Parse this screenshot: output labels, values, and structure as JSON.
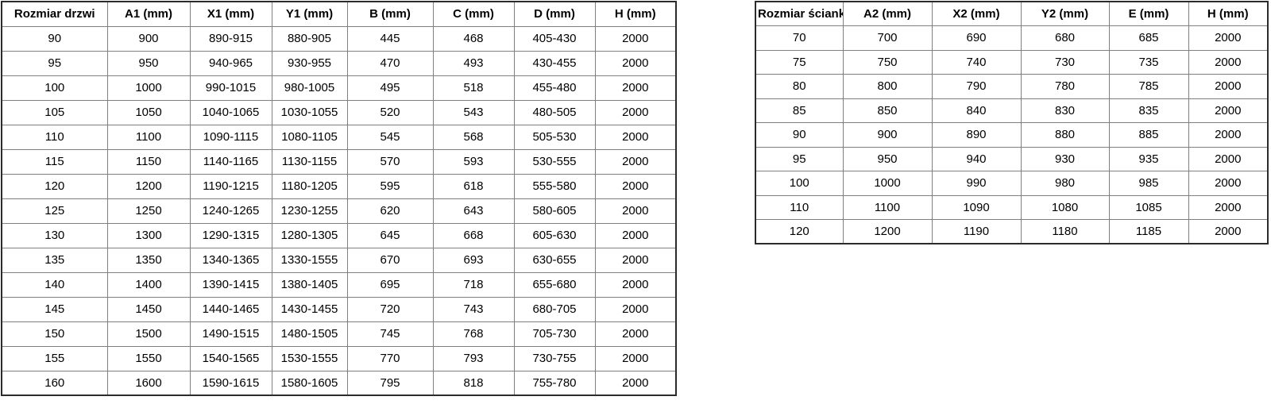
{
  "door_table": {
    "headers": [
      "Rozmiar drzwi",
      "A1 (mm)",
      "X1 (mm)",
      "Y1 (mm)",
      "B (mm)",
      "C (mm)",
      "D (mm)",
      "H (mm)"
    ],
    "rows": [
      [
        "90",
        "900",
        "890-915",
        "880-905",
        "445",
        "468",
        "405-430",
        "2000"
      ],
      [
        "95",
        "950",
        "940-965",
        "930-955",
        "470",
        "493",
        "430-455",
        "2000"
      ],
      [
        "100",
        "1000",
        "990-1015",
        "980-1005",
        "495",
        "518",
        "455-480",
        "2000"
      ],
      [
        "105",
        "1050",
        "1040-1065",
        "1030-1055",
        "520",
        "543",
        "480-505",
        "2000"
      ],
      [
        "110",
        "1100",
        "1090-1115",
        "1080-1105",
        "545",
        "568",
        "505-530",
        "2000"
      ],
      [
        "115",
        "1150",
        "1140-1165",
        "1130-1155",
        "570",
        "593",
        "530-555",
        "2000"
      ],
      [
        "120",
        "1200",
        "1190-1215",
        "1180-1205",
        "595",
        "618",
        "555-580",
        "2000"
      ],
      [
        "125",
        "1250",
        "1240-1265",
        "1230-1255",
        "620",
        "643",
        "580-605",
        "2000"
      ],
      [
        "130",
        "1300",
        "1290-1315",
        "1280-1305",
        "645",
        "668",
        "605-630",
        "2000"
      ],
      [
        "135",
        "1350",
        "1340-1365",
        "1330-1555",
        "670",
        "693",
        "630-655",
        "2000"
      ],
      [
        "140",
        "1400",
        "1390-1415",
        "1380-1405",
        "695",
        "718",
        "655-680",
        "2000"
      ],
      [
        "145",
        "1450",
        "1440-1465",
        "1430-1455",
        "720",
        "743",
        "680-705",
        "2000"
      ],
      [
        "150",
        "1500",
        "1490-1515",
        "1480-1505",
        "745",
        "768",
        "705-730",
        "2000"
      ],
      [
        "155",
        "1550",
        "1540-1565",
        "1530-1555",
        "770",
        "793",
        "730-755",
        "2000"
      ],
      [
        "160",
        "1600",
        "1590-1615",
        "1580-1605",
        "795",
        "818",
        "755-780",
        "2000"
      ]
    ]
  },
  "wall_table": {
    "headers": [
      "Rozmiar ścianki",
      "A2 (mm)",
      "X2 (mm)",
      "Y2 (mm)",
      "E (mm)",
      "H (mm)"
    ],
    "rows": [
      [
        "70",
        "700",
        "690",
        "680",
        "685",
        "2000"
      ],
      [
        "75",
        "750",
        "740",
        "730",
        "735",
        "2000"
      ],
      [
        "80",
        "800",
        "790",
        "780",
        "785",
        "2000"
      ],
      [
        "85",
        "850",
        "840",
        "830",
        "835",
        "2000"
      ],
      [
        "90",
        "900",
        "890",
        "880",
        "885",
        "2000"
      ],
      [
        "95",
        "950",
        "940",
        "930",
        "935",
        "2000"
      ],
      [
        "100",
        "1000",
        "990",
        "980",
        "985",
        "2000"
      ],
      [
        "110",
        "1100",
        "1090",
        "1080",
        "1085",
        "2000"
      ],
      [
        "120",
        "1200",
        "1190",
        "1180",
        "1185",
        "2000"
      ]
    ]
  },
  "colors": {
    "outer_border": "#2b2b2b",
    "inner_border": "#808080",
    "text": "#000000",
    "background": "#ffffff"
  }
}
